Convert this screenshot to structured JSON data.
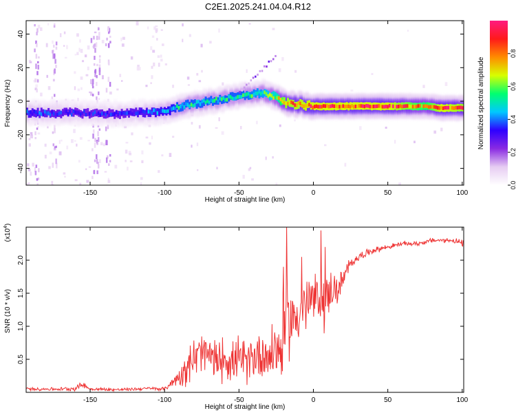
{
  "title": "C2E1.2025.241.04.04.R12",
  "chart_data": [
    {
      "type": "heatmap",
      "name": "spectrogram",
      "xlabel": "Height of straight line (km)",
      "ylabel": "Frequency (Hz)",
      "xlim": [
        -193,
        101
      ],
      "ylim": [
        -50,
        48
      ],
      "xticks": [
        -150,
        -100,
        -50,
        0,
        50,
        100
      ],
      "yticks": [
        -40,
        -20,
        0,
        20,
        40
      ],
      "ridge": {
        "x": [
          -193,
          -160,
          -130,
          -100,
          -90,
          -70,
          -50,
          -35,
          -25,
          -20,
          0,
          20,
          50,
          75,
          85,
          100
        ],
        "freq": [
          -7,
          -7,
          -7.5,
          -6,
          -3,
          0,
          3,
          5,
          2,
          -1,
          -3,
          -3,
          -3,
          -3,
          -4,
          -4
        ],
        "amplitude": [
          0.4,
          0.35,
          0.35,
          0.45,
          0.55,
          0.55,
          0.55,
          0.6,
          0.7,
          0.9,
          0.95,
          0.95,
          0.95,
          0.8,
          0.95,
          0.9
        ]
      },
      "colorbar": {
        "label": "Normalized spectral amplitude",
        "ticks": [
          "0.0",
          "0.2",
          "0.4",
          "0.6",
          "0.8"
        ],
        "tick_values": [
          0.0,
          0.2,
          0.4,
          0.6,
          0.8
        ],
        "range": [
          0,
          1
        ],
        "colors": [
          "#ffffff",
          "#e6ccf2",
          "#8a2be2",
          "#2e00ff",
          "#00c8ff",
          "#00ff70",
          "#d8ff00",
          "#ff8c00",
          "#ff1a1a",
          "#ff1a80"
        ]
      }
    },
    {
      "type": "line",
      "name": "snr",
      "xlabel": "Height of straight line (km)",
      "ylabel": "SNR (10 * v/v)",
      "scale_label": "(x10",
      "scale_exp": "4",
      "scale_close": ")",
      "xlim": [
        -193,
        101
      ],
      "ylim": [
        0,
        2.5
      ],
      "xticks": [
        -150,
        -100,
        -50,
        0,
        50,
        100
      ],
      "yticks": [
        0.5,
        1.0,
        1.5,
        2.0
      ],
      "ytick_labels": [
        "0.5",
        "1.0",
        "1.5",
        "2.0"
      ],
      "series": [
        {
          "name": "SNR",
          "color": "#ee3333",
          "x": [
            -193,
            -170,
            -160,
            -155,
            -150,
            -130,
            -110,
            -100,
            -95,
            -90,
            -85,
            -80,
            -75,
            -70,
            -65,
            -60,
            -55,
            -50,
            -45,
            -40,
            -35,
            -30,
            -25,
            -22,
            -20,
            -18,
            -15,
            -10,
            -5,
            0,
            5,
            8,
            10,
            12,
            15,
            20,
            25,
            30,
            40,
            50,
            60,
            70,
            80,
            90,
            95,
            100,
            101
          ],
          "values": [
            0.05,
            0.05,
            0.06,
            0.12,
            0.05,
            0.04,
            0.06,
            0.05,
            0.15,
            0.25,
            0.4,
            0.5,
            0.6,
            0.55,
            0.45,
            0.55,
            0.45,
            0.5,
            0.45,
            0.55,
            0.6,
            0.55,
            0.7,
            0.6,
            0.9,
            1.1,
            1.1,
            1.2,
            1.3,
            1.4,
            1.45,
            1.3,
            1.5,
            1.6,
            1.5,
            1.7,
            1.95,
            2.05,
            2.15,
            2.2,
            2.25,
            2.25,
            2.3,
            2.3,
            2.3,
            2.25,
            2.25
          ],
          "noise": [
            0.02,
            0.02,
            0.03,
            0.04,
            0.02,
            0.02,
            0.02,
            0.02,
            0.06,
            0.12,
            0.22,
            0.28,
            0.3,
            0.28,
            0.25,
            0.28,
            0.25,
            0.28,
            0.25,
            0.3,
            0.35,
            0.35,
            0.4,
            0.45,
            0.5,
            0.5,
            0.45,
            0.4,
            0.35,
            0.35,
            0.3,
            0.35,
            0.3,
            0.25,
            0.2,
            0.15,
            0.08,
            0.05,
            0.04,
            0.03,
            0.03,
            0.03,
            0.03,
            0.03,
            0.04,
            0.04,
            0.04
          ],
          "spikes": [
            {
              "x": -18,
              "value": 2.52
            },
            {
              "x": 5,
              "value": 2.45
            },
            {
              "x": -8,
              "value": 2.05
            },
            {
              "x": 8,
              "value": 2.2
            },
            {
              "x": -20,
              "value": 1.9
            }
          ]
        }
      ]
    }
  ]
}
